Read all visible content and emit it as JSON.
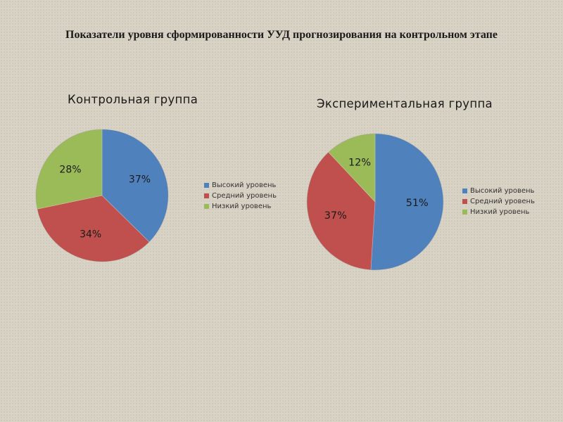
{
  "slide": {
    "title": "Показатели уровня сформированности УУД прогнозирования на контрольном этапе"
  },
  "chart_data": [
    {
      "type": "pie",
      "title": "Контрольная группа",
      "categories": [
        "Высокий уровень",
        "Средний уровень",
        "Низкий уровень"
      ],
      "values": [
        37,
        34,
        28
      ],
      "labels": [
        "37%",
        "34%",
        "28%"
      ],
      "colors": [
        "#4f81bd",
        "#c0504d",
        "#9bbb59"
      ],
      "legend_position": "right"
    },
    {
      "type": "pie",
      "title": "Экспериментальная группа",
      "categories": [
        "Высокий уровень",
        "Средний уровень",
        "Низкий уровень"
      ],
      "values": [
        51,
        37,
        12
      ],
      "labels": [
        "51%",
        "37%",
        "12%"
      ],
      "colors": [
        "#4f81bd",
        "#c0504d",
        "#9bbb59"
      ],
      "legend_position": "right"
    }
  ]
}
